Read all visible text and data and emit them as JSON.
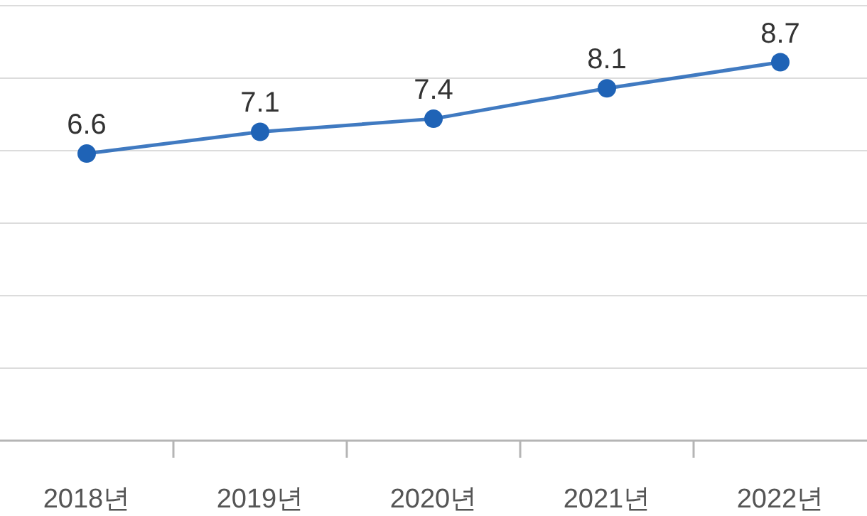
{
  "chart_data": {
    "type": "line",
    "categories": [
      "2018년",
      "2019년",
      "2020년",
      "2021년",
      "2022년"
    ],
    "values": [
      6.6,
      7.1,
      7.4,
      8.1,
      8.7
    ],
    "color": "#1f63b6",
    "data_labels": true,
    "marker": "circle",
    "line_style": "solid",
    "grid": "y",
    "tick_labels": "x",
    "ylim": [
      0,
      10
    ],
    "yticks": [
      {
        "value": 0,
        "label": null
      },
      {
        "value": 1.667,
        "label": null
      },
      {
        "value": 3.333,
        "label": null
      },
      {
        "value": 5,
        "label": null
      },
      {
        "value": 6.667,
        "label": null
      },
      {
        "value": 8.333,
        "label": null
      },
      {
        "value": 10,
        "label": null
      }
    ]
  }
}
